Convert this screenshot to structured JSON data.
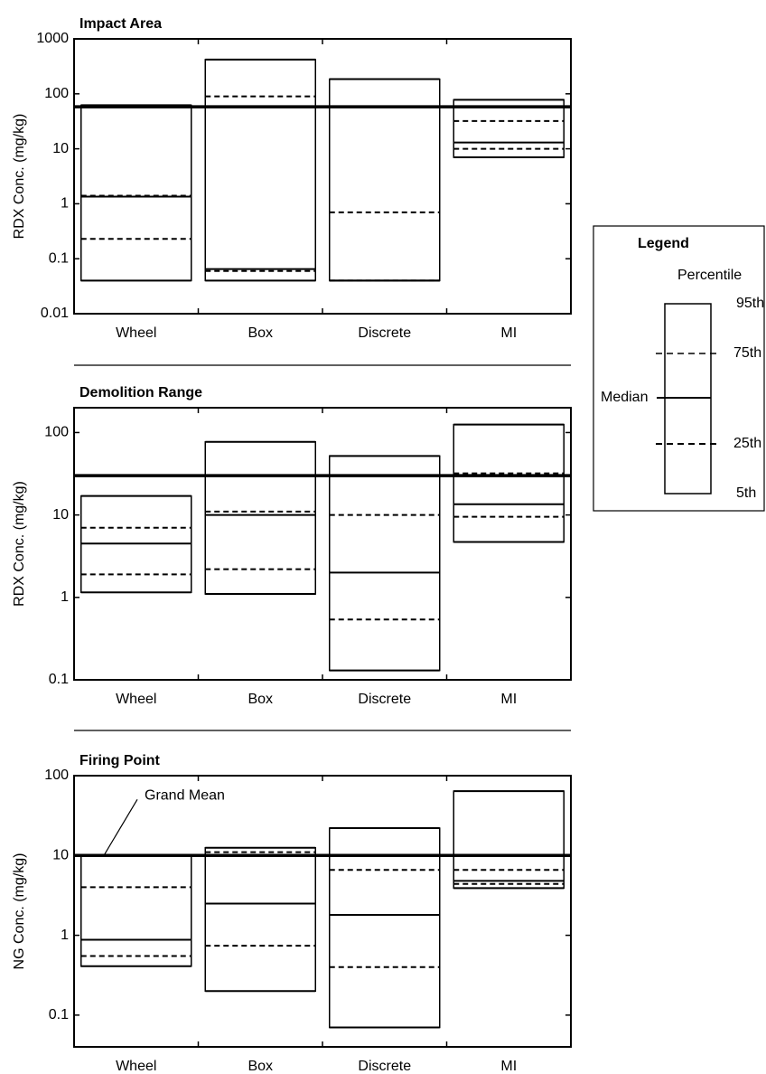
{
  "chart_data": [
    {
      "type": "box",
      "title": "Impact Area",
      "ylabel": "RDX Conc. (mg/kg)",
      "scale": "log",
      "categories": [
        "Wheel",
        "Box",
        "Discrete",
        "MI"
      ],
      "boxes": [
        {
          "p5": 0.04,
          "p25": 0.23,
          "median": 1.35,
          "p75": 1.4,
          "p95": 62
        },
        {
          "p5": 0.04,
          "p25": 0.06,
          "median": 0.065,
          "p75": 90,
          "p95": 420
        },
        {
          "p5": 0.04,
          "p25": 0.04,
          "median": 0.04,
          "p75": 0.7,
          "p95": 185
        },
        {
          "p5": 7,
          "p25": 10,
          "median": 13,
          "p75": 32,
          "p95": 78
        }
      ],
      "reference_line": 58,
      "ylim": [
        0.01,
        1000
      ],
      "yticks": [
        0.01,
        0.1,
        1,
        10,
        100,
        1000
      ]
    },
    {
      "type": "box",
      "title": "Demolition Range",
      "ylabel": "RDX Conc. (mg/kg)",
      "scale": "log",
      "categories": [
        "Wheel",
        "Box",
        "Discrete",
        "MI"
      ],
      "boxes": [
        {
          "p5": 1.15,
          "p25": 1.9,
          "median": 4.5,
          "p75": 7,
          "p95": 17
        },
        {
          "p5": 1.1,
          "p25": 2.2,
          "median": 10,
          "p75": 11,
          "p95": 77
        },
        {
          "p5": 0.13,
          "p25": 0.54,
          "median": 2.0,
          "p75": 10,
          "p95": 52
        },
        {
          "p5": 4.7,
          "p25": 9.5,
          "median": 13.5,
          "p75": 32,
          "p95": 125
        }
      ],
      "reference_line": 30,
      "ylim": [
        0.1,
        200
      ],
      "yticks": [
        0.1,
        1,
        10,
        100
      ]
    },
    {
      "type": "box",
      "title": "Firing Point",
      "ylabel": "NG Conc. (mg/kg)",
      "scale": "log",
      "categories": [
        "Wheel",
        "Box",
        "Discrete",
        "MI"
      ],
      "boxes": [
        {
          "p5": 0.41,
          "p25": 0.55,
          "median": 0.88,
          "p75": 4,
          "p95": 10
        },
        {
          "p5": 0.2,
          "p25": 0.74,
          "median": 2.5,
          "p75": 11,
          "p95": 12.5
        },
        {
          "p5": 0.07,
          "p25": 0.4,
          "median": 1.8,
          "p75": 6.6,
          "p95": 22
        },
        {
          "p5": 3.9,
          "p25": 4.4,
          "median": 4.8,
          "p75": 6.6,
          "p95": 64
        }
      ],
      "reference_line": 10,
      "annotation": "Grand Mean",
      "ylim": [
        0.04,
        100
      ],
      "yticks": [
        0.1,
        1,
        10,
        100
      ]
    }
  ],
  "legend": {
    "title": "Legend",
    "subtitle": "Percentile",
    "p95": "95th",
    "p75": "75th",
    "median": "Median",
    "p25": "25th",
    "p5": "5th"
  }
}
